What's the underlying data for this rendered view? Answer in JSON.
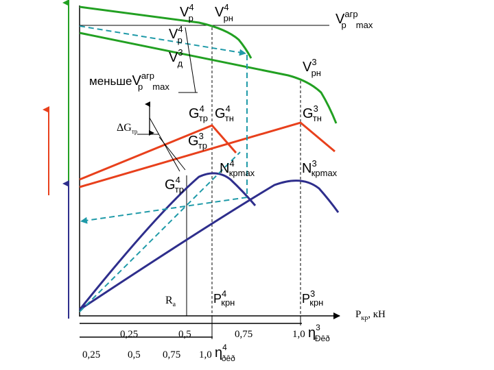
{
  "colors": {
    "green": "#22a022",
    "red": "#e8401c",
    "blue": "#2e2e8c",
    "dash": "#1f9aa8",
    "axis": "#000000"
  },
  "labels": {
    "vp4": "V",
    "vp4_sup": "4",
    "vp4_sub": "p",
    "vpn4": "V",
    "vpn4_sup": "4",
    "vpn4_sub": "pн",
    "vagr": "V",
    "vagr_sup": "агр",
    "vagr_sub": "p",
    "vagr_sub2": "max",
    "vp4b": "V",
    "vp4b_sup": "4",
    "vp4b_sub": "p",
    "vd3": "V",
    "vd3_sup": "3",
    "vd3_sub": "д",
    "less_prefix": "меньше",
    "less_v": "V",
    "less_sup": "агр",
    "less_sub": "p",
    "less_sub2": "max",
    "vpn3": "V",
    "vpn3_sup": "3",
    "vpn3_sub": "pн",
    "dg": "ΔG",
    "dg_sub": "тр",
    "gtr4": "G",
    "gtr4_sup": "4",
    "gtr4_sub": "тр",
    "gtn4": "G",
    "gtn4_sup": "4",
    "gtn4_sub": "тн",
    "gtn3": "G",
    "gtn3_sup": "3",
    "gtn3_sub": "тн",
    "gtr3": "G",
    "gtr3_sup": "3",
    "gtr3_sub": "тр",
    "nkr4": "N",
    "nkr4_sup": "4",
    "nkr4_sub": "кр",
    "nkr4_sub2": "max",
    "nkr3": "N",
    "nkr3_sup": "3",
    "nkr3_sub": "кр",
    "nkr3_sub2": "max",
    "gtr4b": "G",
    "gtr4b_sup": "4",
    "gtr4b_sub": "тр",
    "ra": "R",
    "ra_sub": "a",
    "pkr4": "P",
    "pkr4_sup": "4",
    "pkr4_sub": "кр",
    "pkr4_sub2": "н",
    "pkr3": "P",
    "pkr3_sup": "3",
    "pkr3_sub": "кр",
    "pkr3_sub2": "н",
    "axis_x": "P",
    "axis_x_sub": "кр",
    "axis_x_unit": ", кН"
  },
  "scale1": {
    "ticks": [
      "0,25",
      "0,5",
      "0,75",
      "1,0"
    ],
    "eta": "η",
    "eta_sup": "3",
    "eta_sub": "Ðêð"
  },
  "scale2": {
    "ticks": [
      "0,25",
      "0,5",
      "0,75",
      "1,0"
    ],
    "eta": "η",
    "eta_sup": "4",
    "eta_sub": "ðêð"
  }
}
